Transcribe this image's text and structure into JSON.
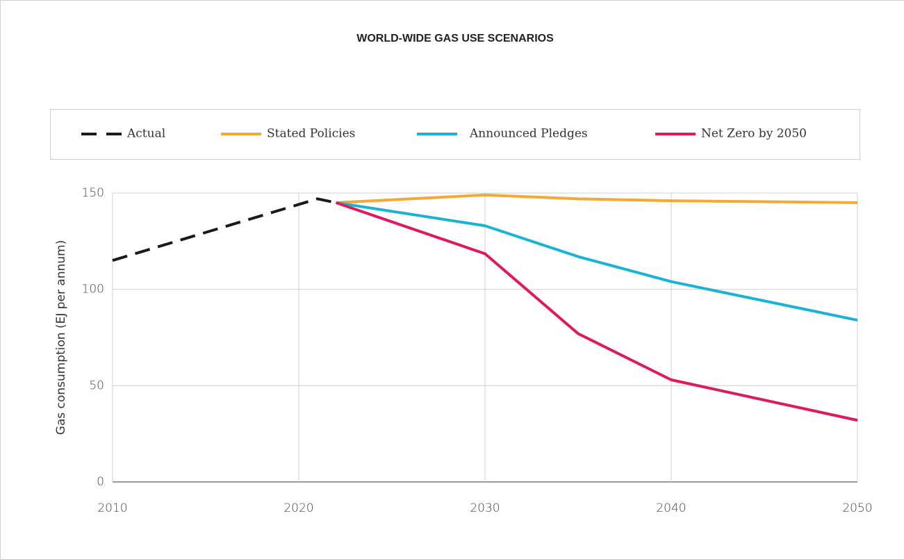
{
  "chart_data": {
    "type": "line",
    "title": "WORLD-WIDE GAS USE SCENARIOS",
    "ylabel": "Gas consumption (EJ per annum)",
    "x": [
      2010,
      2021,
      2022,
      2030,
      2035,
      2040,
      2050
    ],
    "series": [
      {
        "name": "Actual",
        "color": "#1a1a1a",
        "dashed": true,
        "values": [
          115,
          147,
          145,
          null,
          null,
          null,
          null
        ]
      },
      {
        "name": "Stated Policies",
        "color": "#f5a833",
        "values": [
          null,
          null,
          145,
          149,
          147,
          146,
          145
        ]
      },
      {
        "name": "Announced Pledges",
        "color": "#1ab3d6",
        "values": [
          null,
          null,
          145,
          133,
          117,
          104,
          84
        ]
      },
      {
        "name": "Net Zero by 2050",
        "color": "#e0195a",
        "values": [
          null,
          null,
          145,
          118.5,
          77,
          53,
          32
        ]
      }
    ],
    "xlim": [
      2010,
      2050
    ],
    "xticks": [
      2010,
      2020,
      2030,
      2040,
      2050
    ],
    "ylim": [
      0,
      150
    ],
    "yticks": [
      0,
      50,
      100,
      150
    ],
    "grid": true,
    "legend": "top"
  }
}
